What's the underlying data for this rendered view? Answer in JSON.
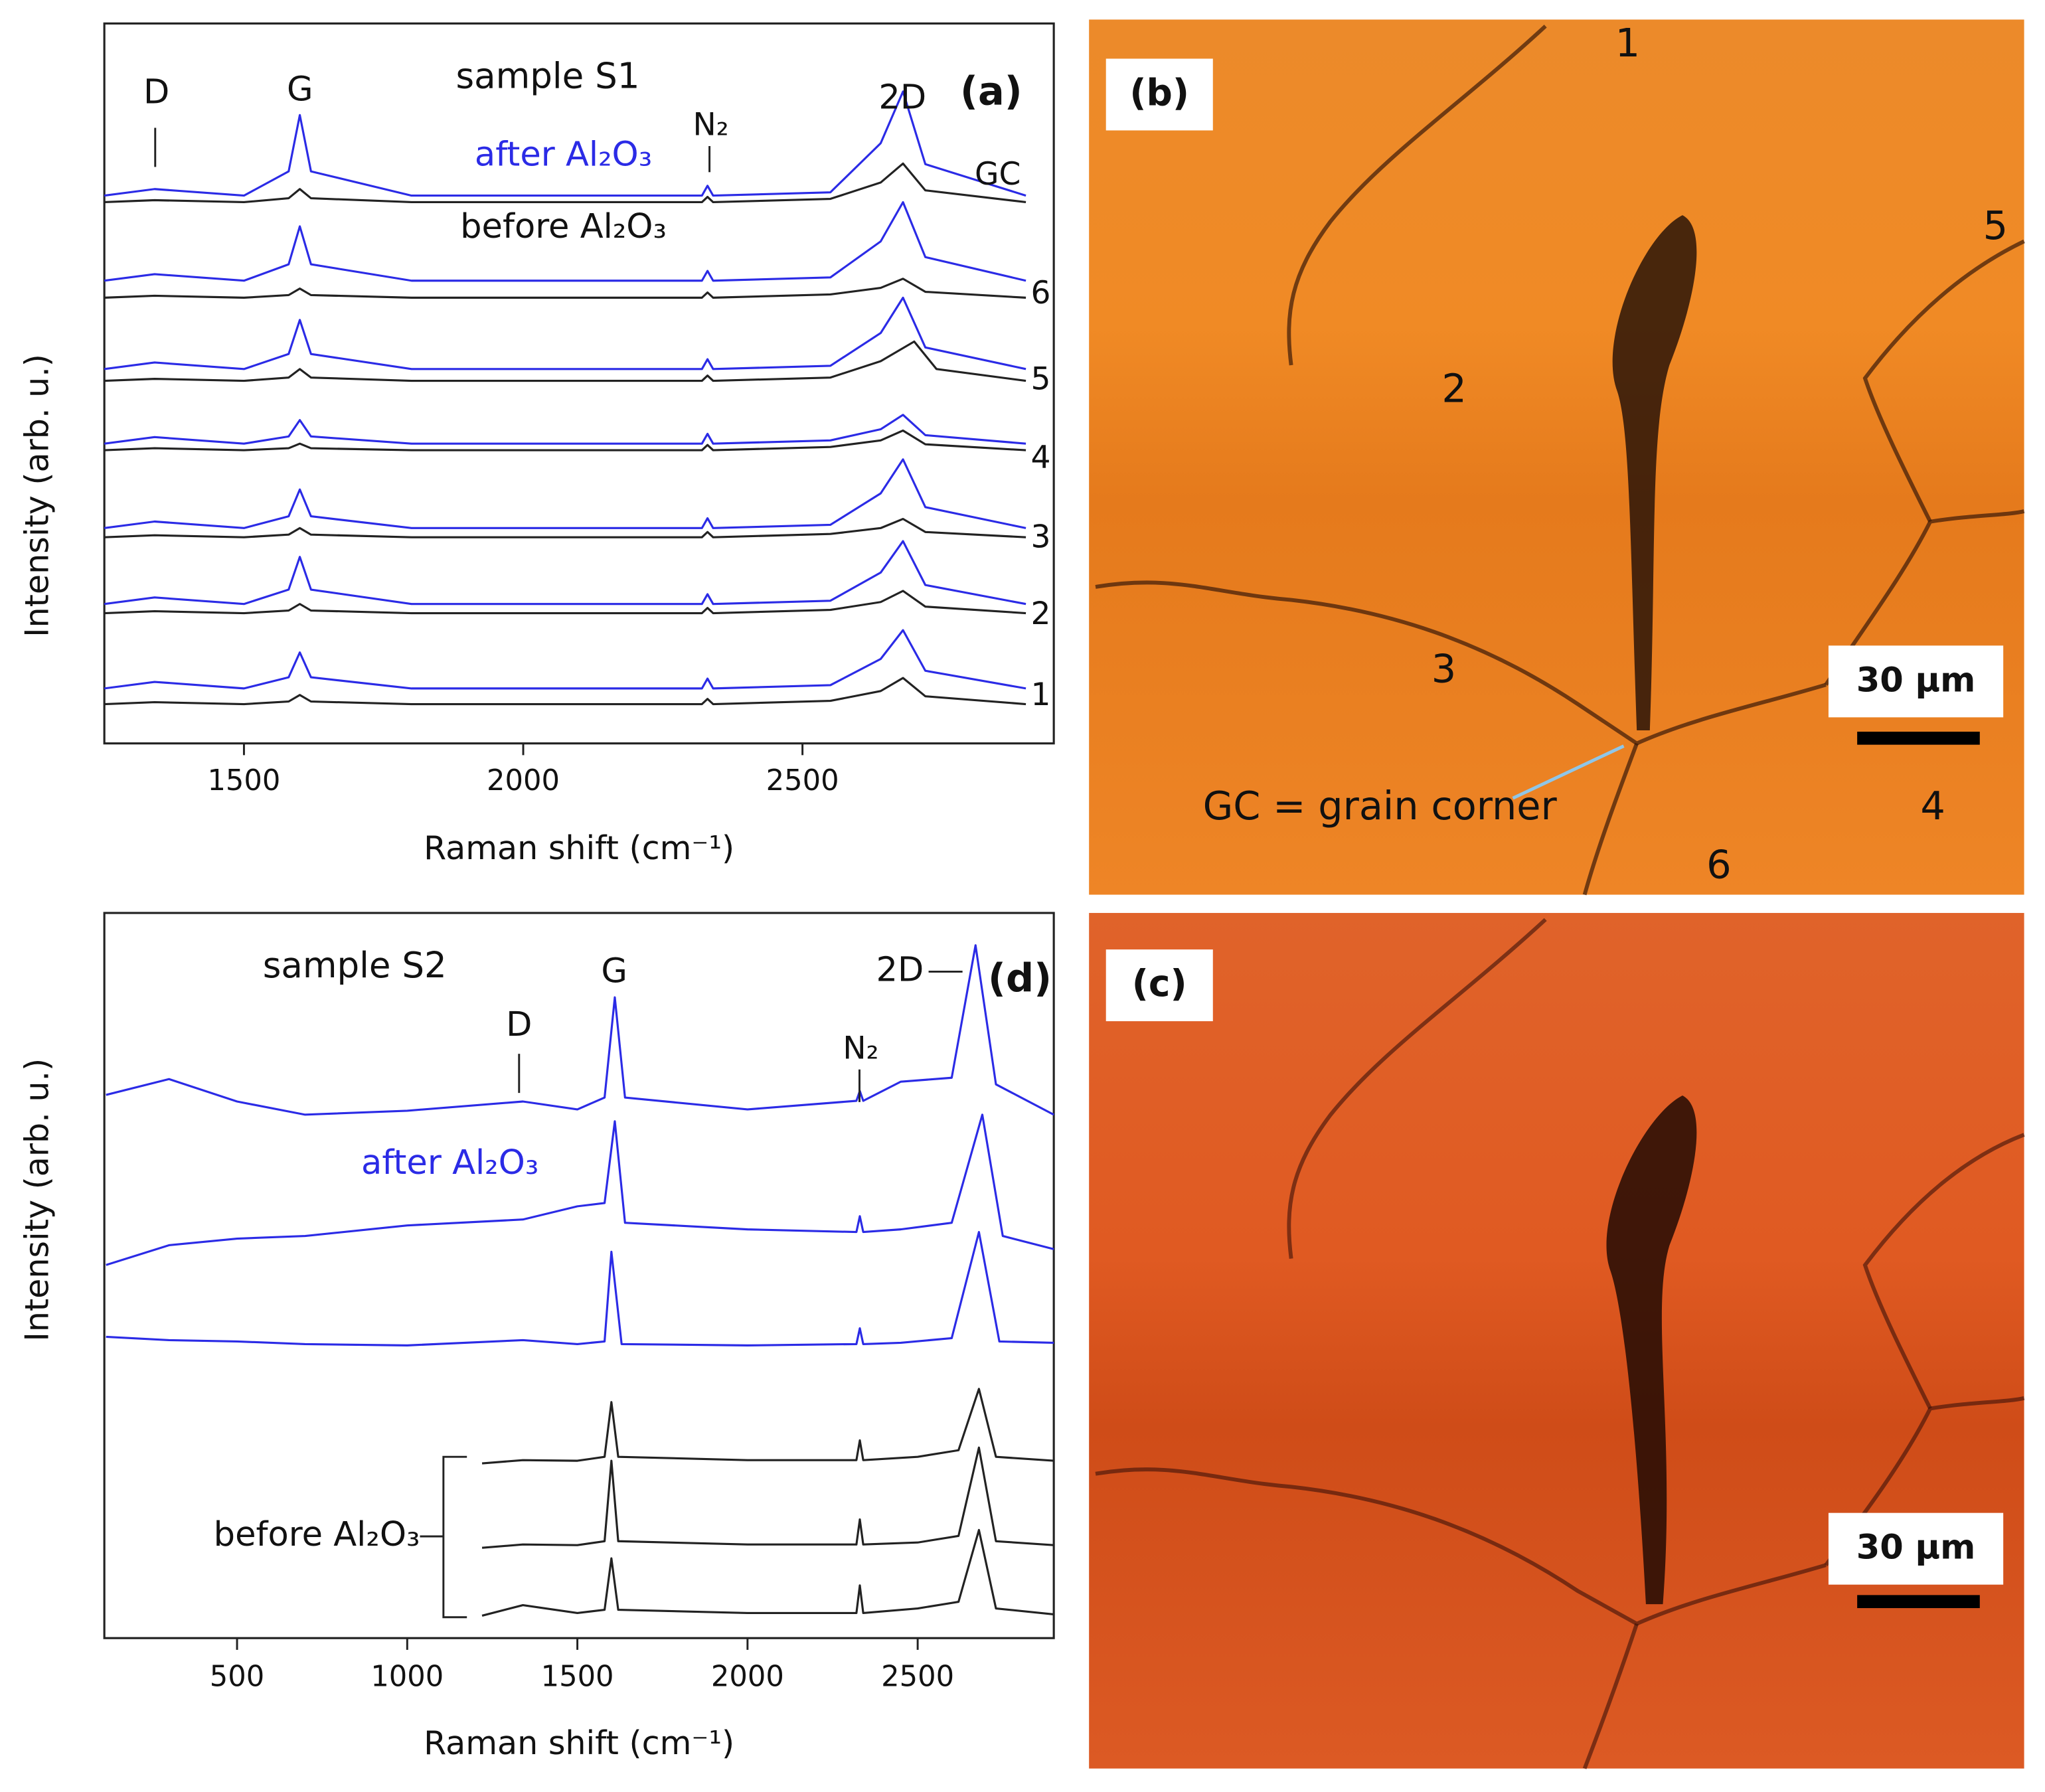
{
  "chart_data": [
    {
      "type": "line",
      "x_label": "Raman shift (cm⁻¹)",
      "y_label": "Intensity (arb. u.)",
      "xlim": [
        1250,
        2950
      ],
      "xticks": [
        1500,
        2000,
        2500
      ],
      "ylim": [
        0,
        110
      ],
      "annotations": [
        "sample S1",
        "D",
        "G",
        "2D",
        "N₂",
        "(a)",
        "after Al₂O₃",
        "before Al₂O₃"
      ],
      "series_labels": [
        "GC",
        "6",
        "5",
        "4",
        "3",
        "2",
        "1"
      ],
      "series": [
        {
          "color": "#2b2be6",
          "x": [
            1250,
            1340,
            1500,
            1580,
            1600,
            1620,
            1800,
            2320,
            2330,
            2340,
            2550,
            2640,
            2680,
            2720,
            2900
          ],
          "values": [
            83.7,
            84.7,
            83.7,
            87.4,
            96,
            87.4,
            83.7,
            83.7,
            85.2,
            83.7,
            84.2,
            91.7,
            99.6,
            88.5,
            83.7
          ]
        },
        {
          "color": "#222222",
          "x": [
            1250,
            1340,
            1500,
            1580,
            1600,
            1620,
            1800,
            2320,
            2330,
            2340,
            2550,
            2640,
            2680,
            2720,
            2900
          ],
          "values": [
            82.7,
            83,
            82.7,
            83.3,
            84.7,
            83.3,
            82.7,
            82.7,
            83.5,
            82.7,
            83.2,
            85.7,
            88.6,
            84.5,
            82.7
          ]
        },
        {
          "color": "#2b2be6",
          "x": [
            1250,
            1340,
            1500,
            1580,
            1600,
            1620,
            1800,
            2320,
            2330,
            2340,
            2550,
            2640,
            2680,
            2720,
            2900
          ],
          "values": [
            70.7,
            71.7,
            70.7,
            73.2,
            79,
            73.2,
            70.7,
            70.7,
            72.2,
            70.7,
            71.2,
            76.7,
            82.7,
            74.3,
            70.7
          ]
        },
        {
          "color": "#222222",
          "x": [
            1250,
            1340,
            1500,
            1580,
            1600,
            1620,
            1800,
            2320,
            2330,
            2340,
            2550,
            2640,
            2680,
            2720,
            2900
          ],
          "values": [
            68.1,
            68.4,
            68.1,
            68.5,
            69.5,
            68.5,
            68.1,
            68.1,
            68.9,
            68.1,
            68.6,
            69.6,
            71,
            69,
            68.1
          ]
        },
        {
          "color": "#2b2be6",
          "x": [
            1250,
            1340,
            1500,
            1580,
            1600,
            1620,
            1800,
            2320,
            2330,
            2340,
            2550,
            2640,
            2680,
            2720,
            2900
          ],
          "values": [
            57.2,
            58.2,
            57.2,
            59.5,
            64.7,
            59.5,
            57.2,
            57.2,
            58.7,
            57.2,
            57.7,
            62.7,
            68.1,
            60.5,
            57.2
          ]
        },
        {
          "color": "#222222",
          "x": [
            1250,
            1340,
            1500,
            1580,
            1600,
            1620,
            1800,
            2320,
            2330,
            2340,
            2550,
            2640,
            2700,
            2740,
            2900
          ],
          "values": [
            55.4,
            55.7,
            55.4,
            55.9,
            57.2,
            55.9,
            55.4,
            55.4,
            56.2,
            55.4,
            55.9,
            58.4,
            61.4,
            57.2,
            55.4
          ]
        },
        {
          "color": "#2b2be6",
          "x": [
            1250,
            1340,
            1500,
            1580,
            1600,
            1620,
            1800,
            2320,
            2330,
            2340,
            2550,
            2640,
            2680,
            2720,
            2900
          ],
          "values": [
            45.8,
            46.8,
            45.8,
            46.9,
            49.4,
            46.9,
            45.8,
            45.8,
            47.3,
            45.8,
            46.3,
            48,
            50.2,
            47.1,
            45.8
          ]
        },
        {
          "color": "#222222",
          "x": [
            1250,
            1340,
            1500,
            1580,
            1600,
            1620,
            1800,
            2320,
            2330,
            2340,
            2550,
            2640,
            2680,
            2720,
            2900
          ],
          "values": [
            44.8,
            45.1,
            44.8,
            45.1,
            45.8,
            45.1,
            44.8,
            44.8,
            45.6,
            44.8,
            45.3,
            46.3,
            47.8,
            45.7,
            44.8
          ]
        },
        {
          "color": "#2b2be6",
          "x": [
            1250,
            1340,
            1500,
            1580,
            1600,
            1620,
            1800,
            2320,
            2330,
            2340,
            2550,
            2640,
            2680,
            2720,
            2900
          ],
          "values": [
            32.9,
            33.9,
            32.9,
            34.7,
            38.8,
            34.7,
            32.9,
            32.9,
            34.4,
            32.9,
            33.4,
            38.2,
            43.4,
            36.1,
            32.9
          ]
        },
        {
          "color": "#222222",
          "x": [
            1250,
            1340,
            1500,
            1580,
            1600,
            1620,
            1800,
            2320,
            2330,
            2340,
            2550,
            2640,
            2680,
            2720,
            2900
          ],
          "values": [
            31.5,
            31.8,
            31.5,
            31.9,
            32.9,
            31.9,
            31.5,
            31.5,
            32.3,
            31.5,
            32,
            32.9,
            34.3,
            32.3,
            31.5
          ]
        },
        {
          "color": "#2b2be6",
          "x": [
            1250,
            1340,
            1500,
            1580,
            1600,
            1620,
            1800,
            2320,
            2330,
            2340,
            2550,
            2640,
            2680,
            2720,
            2900
          ],
          "values": [
            21.3,
            22.3,
            21.3,
            23.5,
            28.5,
            23.5,
            21.3,
            21.3,
            22.8,
            21.3,
            21.8,
            26.1,
            30.9,
            24.2,
            21.3
          ]
        },
        {
          "color": "#222222",
          "x": [
            1250,
            1340,
            1500,
            1580,
            1600,
            1620,
            1800,
            2320,
            2330,
            2340,
            2550,
            2640,
            2680,
            2720,
            2900
          ],
          "values": [
            19.9,
            20.2,
            19.9,
            20.3,
            21.3,
            20.3,
            19.9,
            19.9,
            20.7,
            19.9,
            20.4,
            21.6,
            23.3,
            20.9,
            19.9
          ]
        },
        {
          "color": "#2b2be6",
          "x": [
            1250,
            1340,
            1500,
            1580,
            1600,
            1620,
            1800,
            2320,
            2330,
            2340,
            2550,
            2640,
            2680,
            2720,
            2900
          ],
          "values": [
            8.4,
            9.4,
            8.4,
            10.1,
            13.9,
            10.1,
            8.4,
            8.4,
            9.9,
            8.4,
            8.9,
            12.9,
            17.3,
            11.1,
            8.4
          ]
        },
        {
          "color": "#222222",
          "x": [
            1250,
            1340,
            1500,
            1580,
            1600,
            1620,
            1800,
            2320,
            2330,
            2340,
            2550,
            2640,
            2680,
            2720,
            2900
          ],
          "values": [
            6,
            6.3,
            6,
            6.4,
            7.4,
            6.4,
            6,
            6,
            6.8,
            6,
            6.5,
            8,
            10,
            7.2,
            6
          ]
        }
      ]
    },
    {
      "type": "line",
      "x_label": "Raman shift (cm⁻¹)",
      "y_label": "Intensity (arb. u.)",
      "xlim": [
        110,
        2900
      ],
      "xticks": [
        500,
        1000,
        1500,
        2000,
        2500
      ],
      "ylim": [
        0,
        110
      ],
      "annotations": [
        "sample S2",
        "D",
        "G",
        "2D",
        "(d)",
        "N₂",
        "after Al₂O₃",
        "before Al₂O₃"
      ],
      "series": [
        {
          "color": "#2b2be6",
          "x": [
            115,
            300,
            500,
            700,
            1000,
            1340,
            1500,
            1580,
            1610,
            1640,
            2000,
            2320,
            2330,
            2340,
            2450,
            2600,
            2670,
            2730,
            2900
          ],
          "values": [
            82.4,
            84.8,
            81.4,
            79.4,
            80,
            81.4,
            80.2,
            82,
            97.2,
            82,
            80.2,
            81.5,
            83,
            81.5,
            84.4,
            85,
            105.1,
            84,
            79.4
          ]
        },
        {
          "color": "#2b2be6",
          "x": [
            115,
            300,
            500,
            700,
            1000,
            1340,
            1500,
            1580,
            1610,
            1640,
            2000,
            2320,
            2330,
            2340,
            2450,
            2600,
            2690,
            2750,
            2900
          ],
          "values": [
            56.6,
            59.6,
            60.6,
            61,
            62.6,
            63.5,
            65.5,
            66,
            78.4,
            63,
            62,
            61.6,
            64,
            61.6,
            62,
            63,
            79.4,
            61,
            59
          ]
        },
        {
          "color": "#2b2be6",
          "x": [
            115,
            300,
            500,
            700,
            1000,
            1340,
            1500,
            1580,
            1600,
            1630,
            2000,
            2320,
            2330,
            2340,
            2450,
            2600,
            2680,
            2740,
            2900
          ],
          "values": [
            45.7,
            45.2,
            45,
            44.6,
            44.4,
            45.2,
            44.6,
            45,
            58.6,
            44.6,
            44.4,
            44.6,
            47,
            44.6,
            44.8,
            45.5,
            61.6,
            45,
            44.8
          ]
        },
        {
          "color": "#222222",
          "x": [
            1220,
            1340,
            1500,
            1580,
            1600,
            1620,
            2000,
            2320,
            2330,
            2340,
            2500,
            2620,
            2680,
            2730,
            2900
          ],
          "values": [
            26.5,
            27,
            26.9,
            27.5,
            35.8,
            27.5,
            27,
            27,
            30,
            27,
            27.5,
            28.5,
            37.8,
            27.5,
            26.9
          ]
        },
        {
          "color": "#222222",
          "x": [
            1220,
            1340,
            1500,
            1580,
            1600,
            1620,
            2000,
            2320,
            2330,
            2340,
            2500,
            2620,
            2680,
            2730,
            2900
          ],
          "values": [
            13.7,
            14.2,
            14.1,
            14.7,
            26.9,
            14.7,
            14.2,
            14.2,
            18,
            14.2,
            14.5,
            15.5,
            28.9,
            14.7,
            14.1
          ]
        },
        {
          "color": "#222222",
          "x": [
            1220,
            1340,
            1500,
            1580,
            1600,
            1620,
            2000,
            2320,
            2330,
            2340,
            2500,
            2620,
            2680,
            2730,
            2900
          ],
          "values": [
            3.4,
            5,
            3.8,
            4.3,
            12.1,
            4.3,
            3.8,
            3.8,
            8,
            3.8,
            4.5,
            5.5,
            16.4,
            4.5,
            3.6
          ]
        }
      ]
    }
  ],
  "micrographs": [
    {
      "label": "(b)",
      "scale_bar": "30 μm",
      "region_labels": [
        "1",
        "2",
        "3",
        "4",
        "5",
        "6"
      ],
      "annotation": "GC = grain corner"
    },
    {
      "label": "(c)",
      "scale_bar": "30 μm"
    }
  ]
}
